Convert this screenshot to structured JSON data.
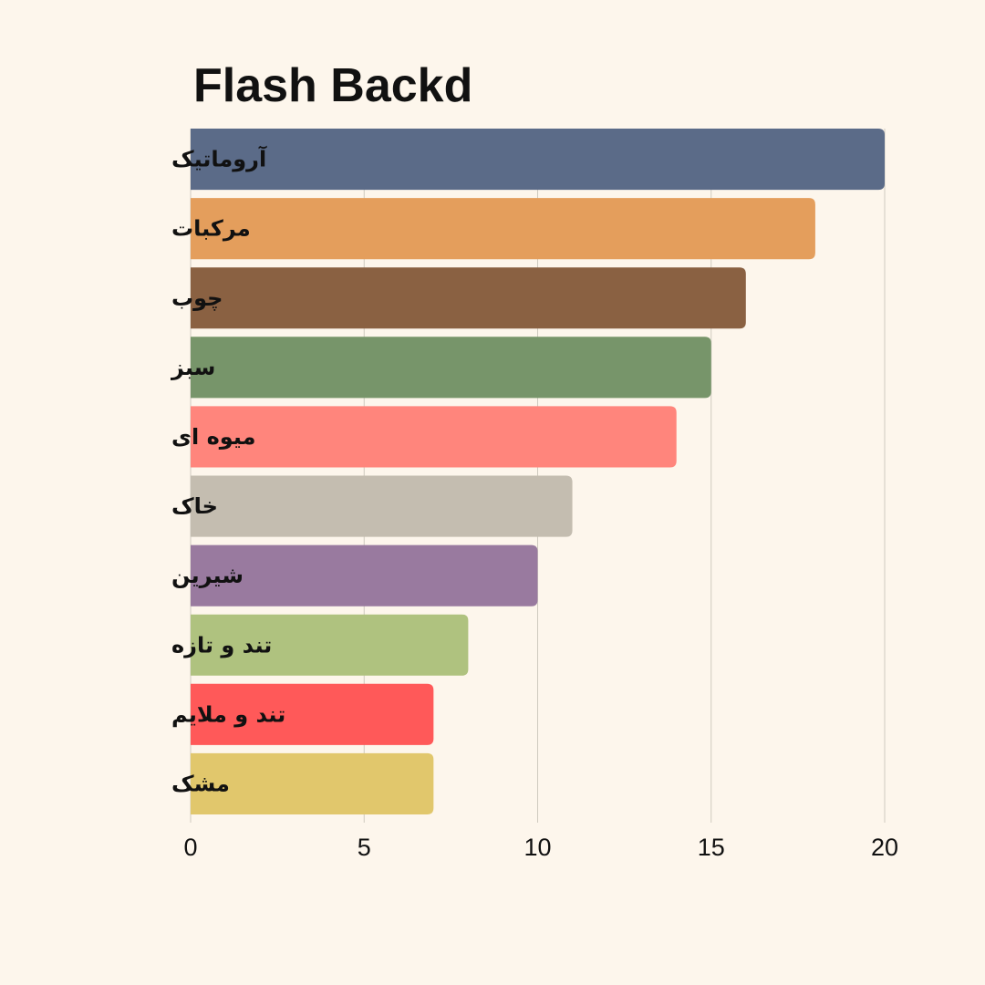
{
  "chart_data": {
    "type": "bar",
    "orientation": "horizontal",
    "title": "Flash Backd",
    "xlabel": "",
    "ylabel": "",
    "categories": [
      "آروماتیک",
      "مرکبات",
      "چوب",
      "سبز",
      "میوه ای",
      "خاک",
      "شیرین",
      "تند و تازه",
      "تند و ملایم",
      "مشک"
    ],
    "values": [
      20,
      18,
      16,
      15,
      14,
      11,
      10,
      8,
      7,
      7
    ],
    "colors": [
      "#5b6b88",
      "#e49e5c",
      "#8a6142",
      "#77956a",
      "#ff857c",
      "#c4bdb0",
      "#997a9f",
      "#afc27f",
      "#ff5959",
      "#e1c76c"
    ],
    "xlim": [
      0,
      20
    ],
    "xticks": [
      0,
      5,
      10,
      15,
      20
    ],
    "grid": "vertical",
    "legend": "none",
    "background": "#fdf6ec"
  }
}
